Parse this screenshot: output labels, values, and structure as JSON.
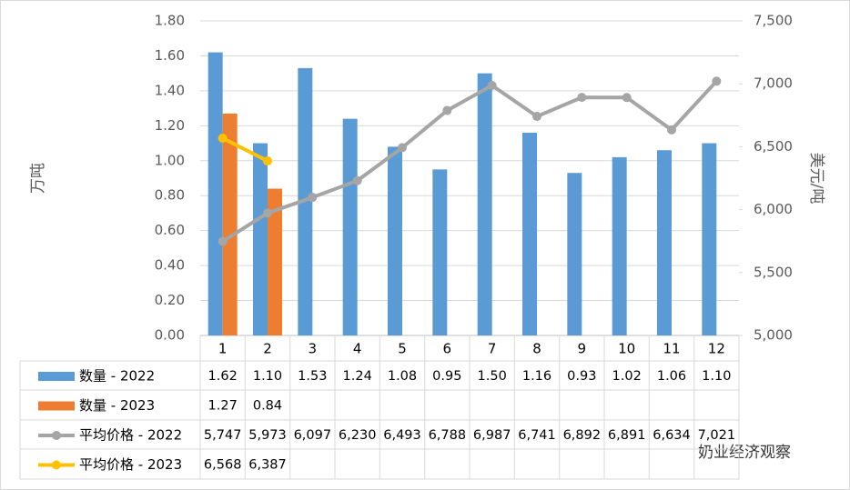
{
  "chart_data": {
    "type": "bar-line-table",
    "categories": [
      "1",
      "2",
      "3",
      "4",
      "5",
      "6",
      "7",
      "8",
      "9",
      "10",
      "11",
      "12"
    ],
    "series": [
      {
        "name": "数量 - 2022",
        "kind": "bar",
        "color": "#5b9bd5",
        "values": [
          1.62,
          1.1,
          1.53,
          1.24,
          1.08,
          0.95,
          1.5,
          1.16,
          0.93,
          1.02,
          1.06,
          1.1
        ],
        "value_labels": [
          "1.62",
          "1.10",
          "1.53",
          "1.24",
          "1.08",
          "0.95",
          "1.50",
          "1.16",
          "0.93",
          "1.02",
          "1.06",
          "1.10"
        ]
      },
      {
        "name": "数量 - 2023",
        "kind": "bar",
        "color": "#ed7d31",
        "values": [
          1.27,
          0.84,
          null,
          null,
          null,
          null,
          null,
          null,
          null,
          null,
          null,
          null
        ],
        "value_labels": [
          "1.27",
          "0.84",
          null,
          null,
          null,
          null,
          null,
          null,
          null,
          null,
          null,
          null
        ]
      },
      {
        "name": "平均价格 - 2022",
        "kind": "line",
        "axis": "y2",
        "color": "#a5a5a5",
        "values": [
          5747,
          5973,
          6097,
          6230,
          6493,
          6788,
          6987,
          6741,
          6892,
          6891,
          6634,
          7021
        ],
        "value_labels": [
          "5,747",
          "5,973",
          "6,097",
          "6,230",
          "6,493",
          "6,788",
          "6,987",
          "6,741",
          "6,892",
          "6,891",
          "6,634",
          "7,021"
        ]
      },
      {
        "name": "平均价格 - 2023",
        "kind": "line",
        "axis": "y2",
        "color": "#ffc000",
        "values": [
          6568,
          6387,
          null,
          null,
          null,
          null,
          null,
          null,
          null,
          null,
          null,
          null
        ],
        "value_labels": [
          "6,568",
          "6,387",
          null,
          null,
          null,
          null,
          null,
          null,
          null,
          null,
          null,
          null
        ]
      }
    ],
    "ylabel": "万吨",
    "y2label": "美元/吨",
    "ylim": [
      0,
      1.8
    ],
    "yticks": [
      {
        "value": 0,
        "label": "0.00"
      },
      {
        "value": 0.2,
        "label": "0.20"
      },
      {
        "value": 0.4,
        "label": "0.40"
      },
      {
        "value": 0.6,
        "label": "0.60"
      },
      {
        "value": 0.8,
        "label": "0.80"
      },
      {
        "value": 1.0,
        "label": "1.00"
      },
      {
        "value": 1.2,
        "label": "1.20"
      },
      {
        "value": 1.4,
        "label": "1.40"
      },
      {
        "value": 1.6,
        "label": "1.60"
      },
      {
        "value": 1.8,
        "label": "1.80"
      }
    ],
    "y2lim": [
      5000,
      7500
    ],
    "y2ticks": [
      {
        "value": 5000,
        "label": "5,000"
      },
      {
        "value": 5500,
        "label": "5,500"
      },
      {
        "value": 6000,
        "label": "6,000"
      },
      {
        "value": 6500,
        "label": "6,500"
      },
      {
        "value": 7000,
        "label": "7,000"
      },
      {
        "value": 7500,
        "label": "7,500"
      }
    ],
    "watermark": "奶业经济观察"
  }
}
